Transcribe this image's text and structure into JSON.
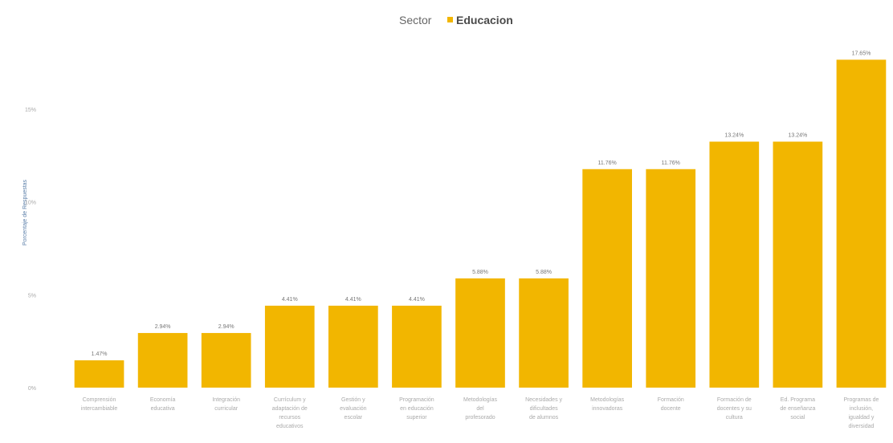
{
  "chart_data": {
    "type": "bar",
    "title": "",
    "legend": {
      "title": "Sector",
      "series_name": "Educacion",
      "placement": "top-center"
    },
    "xlabel": "",
    "ylabel": "Porcentaje de Respuestas",
    "ylim": [
      0,
      20
    ],
    "yticks": [
      {
        "value": 0,
        "label": "0%"
      },
      {
        "value": 5,
        "label": "5%"
      },
      {
        "value": 10,
        "label": "10%"
      },
      {
        "value": 15,
        "label": "15%"
      }
    ],
    "grid": false,
    "color": "#F2B600",
    "categories": [
      "Comprensión intercambiable",
      "Economía educativa",
      "Integración curricular",
      "Currículum y adaptación de recursos educativos",
      "Gestión y evaluación escolar",
      "Programación en educación superior",
      "Metodologías del profesorado",
      "Necesidades y dificultades de alumnos",
      "Metodologías innovadoras",
      "Formación docente",
      "Formación de docentes y su cultura",
      "Ed. Programa de enseñanza social",
      "Programas de inclusión, igualdad y diversidad"
    ],
    "values": [
      1.47,
      2.94,
      2.94,
      4.41,
      4.41,
      4.41,
      5.88,
      5.88,
      11.76,
      11.76,
      13.24,
      13.24,
      17.65
    ],
    "data_labels": [
      "1.47%",
      "2.94%",
      "2.94%",
      "4.41%",
      "4.41%",
      "4.41%",
      "5.88%",
      "5.88%",
      "11.76%",
      "11.76%",
      "13.24%",
      "13.24%",
      "17.65%"
    ]
  }
}
